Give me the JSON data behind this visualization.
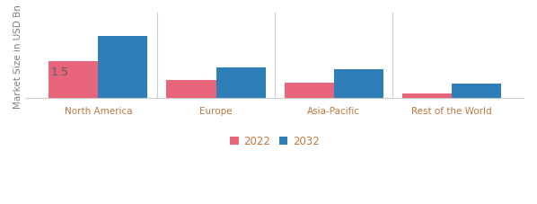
{
  "categories": [
    "North America",
    "Europe",
    "Asia-Pacific",
    "Rest of the World"
  ],
  "values_2022": [
    1.5,
    0.75,
    0.65,
    0.18
  ],
  "values_2032": [
    2.55,
    1.25,
    1.18,
    0.58
  ],
  "annotation": "1.5",
  "annotation_bar": 0,
  "color_2022": "#e8647a",
  "color_2032": "#2e7fb8",
  "ylabel": "Market Size in USD Bn",
  "legend_2022": "2022",
  "legend_2032": "2032",
  "ylim": [
    0,
    3.5
  ],
  "bar_width": 0.42,
  "bar_gap": 0.0,
  "background_color": "#ffffff",
  "xlabel_color": "#c07840",
  "ylabel_color": "#808080",
  "annotation_color": "#606060",
  "tick_color": "#c07840",
  "separator_color": "#cccccc"
}
